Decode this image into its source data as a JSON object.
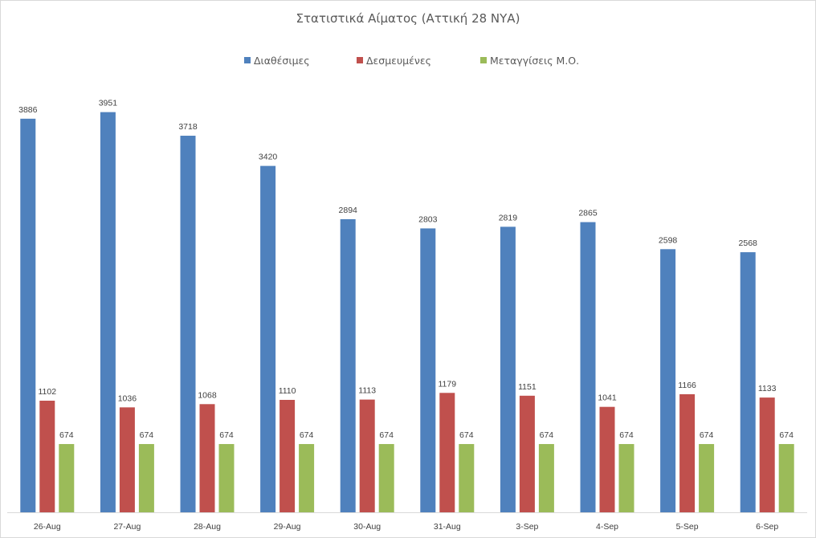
{
  "chart_data": {
    "type": "bar",
    "title": "Στατιστικά Αίματος (Αττική 28 ΝΥΑ)",
    "xlabel": "",
    "ylabel": "",
    "categories": [
      "26-Aug",
      "27-Aug",
      "28-Aug",
      "29-Aug",
      "30-Aug",
      "31-Aug",
      "3-Sep",
      "4-Sep",
      "5-Sep",
      "6-Sep"
    ],
    "series": [
      {
        "name": "Διαθέσιμες",
        "color": "#4f81bd",
        "values": [
          3886,
          3951,
          3718,
          3420,
          2894,
          2803,
          2819,
          2865,
          2598,
          2568
        ]
      },
      {
        "name": "Δεσμευμένες",
        "color": "#c0504d",
        "values": [
          1102,
          1036,
          1068,
          1110,
          1113,
          1179,
          1151,
          1041,
          1166,
          1133
        ]
      },
      {
        "name": "Μεταγγίσεις Μ.Ο.",
        "color": "#9bbb59",
        "values": [
          674,
          674,
          674,
          674,
          674,
          674,
          674,
          674,
          674,
          674
        ]
      }
    ],
    "ylim": [
      0,
      4400
    ],
    "grid": false,
    "legend_position": "top",
    "data_labels": true,
    "axis_line_color": "#d9d9d9"
  }
}
